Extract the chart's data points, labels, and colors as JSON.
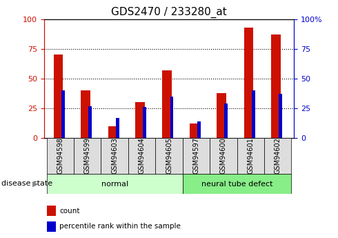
{
  "title": "GDS2470 / 233280_at",
  "samples": [
    "GSM94598",
    "GSM94599",
    "GSM94603",
    "GSM94604",
    "GSM94605",
    "GSM94597",
    "GSM94600",
    "GSM94601",
    "GSM94602"
  ],
  "red_values": [
    70,
    40,
    10,
    30,
    57,
    12,
    38,
    93,
    87
  ],
  "blue_values": [
    40,
    27,
    17,
    26,
    35,
    14,
    29,
    40,
    37
  ],
  "red_color": "#cc1100",
  "blue_color": "#0000cc",
  "ylim": [
    0,
    100
  ],
  "yticks": [
    0,
    25,
    50,
    75,
    100
  ],
  "left_ylabel_color": "#cc1100",
  "right_ylabel_color": "#0000cc",
  "groups": [
    {
      "label": "normal",
      "start": 0,
      "end": 5,
      "color": "#ccffcc"
    },
    {
      "label": "neural tube defect",
      "start": 5,
      "end": 9,
      "color": "#88ee88"
    }
  ],
  "disease_state_label": "disease state",
  "legend_items": [
    {
      "label": "count",
      "color": "#cc1100"
    },
    {
      "label": "percentile rank within the sample",
      "color": "#0000cc"
    }
  ],
  "plot_bg_color": "#ffffff",
  "tick_label_bg": "#dddddd",
  "title_fontsize": 11
}
